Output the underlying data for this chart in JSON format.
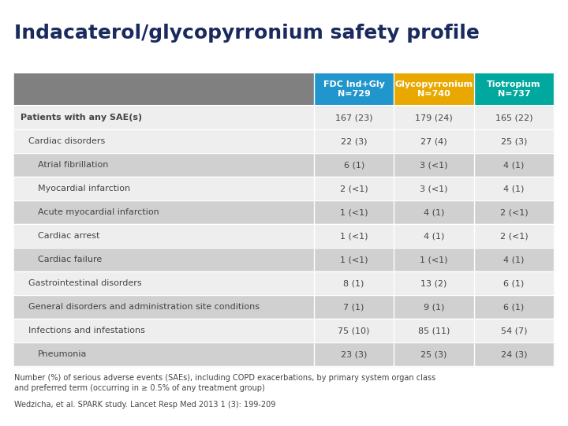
{
  "title": "Indacaterol/glycopyrronium safety profile",
  "title_fontsize": 18,
  "title_fontweight": "bold",
  "title_color": "#1a2a5e",
  "col_headers": [
    "FDC Ind+Gly\nN=729",
    "Glycopyrronium\nN=740",
    "Tiotropium\nN=737"
  ],
  "col_header_colors": [
    "#2196cc",
    "#e8a800",
    "#00a89d"
  ],
  "col_header_text_color": "#ffffff",
  "rows": [
    {
      "label": "Patients with any SAE(s)",
      "indent": 0,
      "bold": true,
      "values": [
        "167 (23)",
        "179 (24)",
        "165 (22)"
      ],
      "shade": false
    },
    {
      "label": "Cardiac disorders",
      "indent": 1,
      "bold": false,
      "values": [
        "22 (3)",
        "27 (4)",
        "25 (3)"
      ],
      "shade": false
    },
    {
      "label": "Atrial fibrillation",
      "indent": 2,
      "bold": false,
      "values": [
        "6 (1)",
        "3 (<1)",
        "4 (1)"
      ],
      "shade": true
    },
    {
      "label": "Myocardial infarction",
      "indent": 2,
      "bold": false,
      "values": [
        "2 (<1)",
        "3 (<1)",
        "4 (1)"
      ],
      "shade": false
    },
    {
      "label": "Acute myocardial infarction",
      "indent": 2,
      "bold": false,
      "values": [
        "1 (<1)",
        "4 (1)",
        "2 (<1)"
      ],
      "shade": true
    },
    {
      "label": "Cardiac arrest",
      "indent": 2,
      "bold": false,
      "values": [
        "1 (<1)",
        "4 (1)",
        "2 (<1)"
      ],
      "shade": false
    },
    {
      "label": "Cardiac failure",
      "indent": 2,
      "bold": false,
      "values": [
        "1 (<1)",
        "1 (<1)",
        "4 (1)"
      ],
      "shade": true
    },
    {
      "label": "Gastrointestinal disorders",
      "indent": 1,
      "bold": false,
      "values": [
        "8 (1)",
        "13 (2)",
        "6 (1)"
      ],
      "shade": false
    },
    {
      "label": "General disorders and administration site conditions",
      "indent": 1,
      "bold": false,
      "values": [
        "7 (1)",
        "9 (1)",
        "6 (1)"
      ],
      "shade": true
    },
    {
      "label": "Infections and infestations",
      "indent": 1,
      "bold": false,
      "values": [
        "75 (10)",
        "85 (11)",
        "54 (7)"
      ],
      "shade": false
    },
    {
      "label": "Pneumonia",
      "indent": 2,
      "bold": false,
      "values": [
        "23 (3)",
        "25 (3)",
        "24 (3)"
      ],
      "shade": true
    }
  ],
  "footnote1": "Number (%) of serious adverse events (SAEs), including COPD exacerbations, by primary system organ class",
  "footnote2": "and preferred term (occurring in ≥ 0.5% of any treatment group)",
  "reference": "Wedzicha, et al. SPARK study. Lancet Resp Med 2013 1 (3): 199-209",
  "bg_color": "#ffffff",
  "header_row_color": "#808080",
  "row_shade_color": "#d0d0d0",
  "row_normal_color": "#eeeeee",
  "text_color": "#444444"
}
